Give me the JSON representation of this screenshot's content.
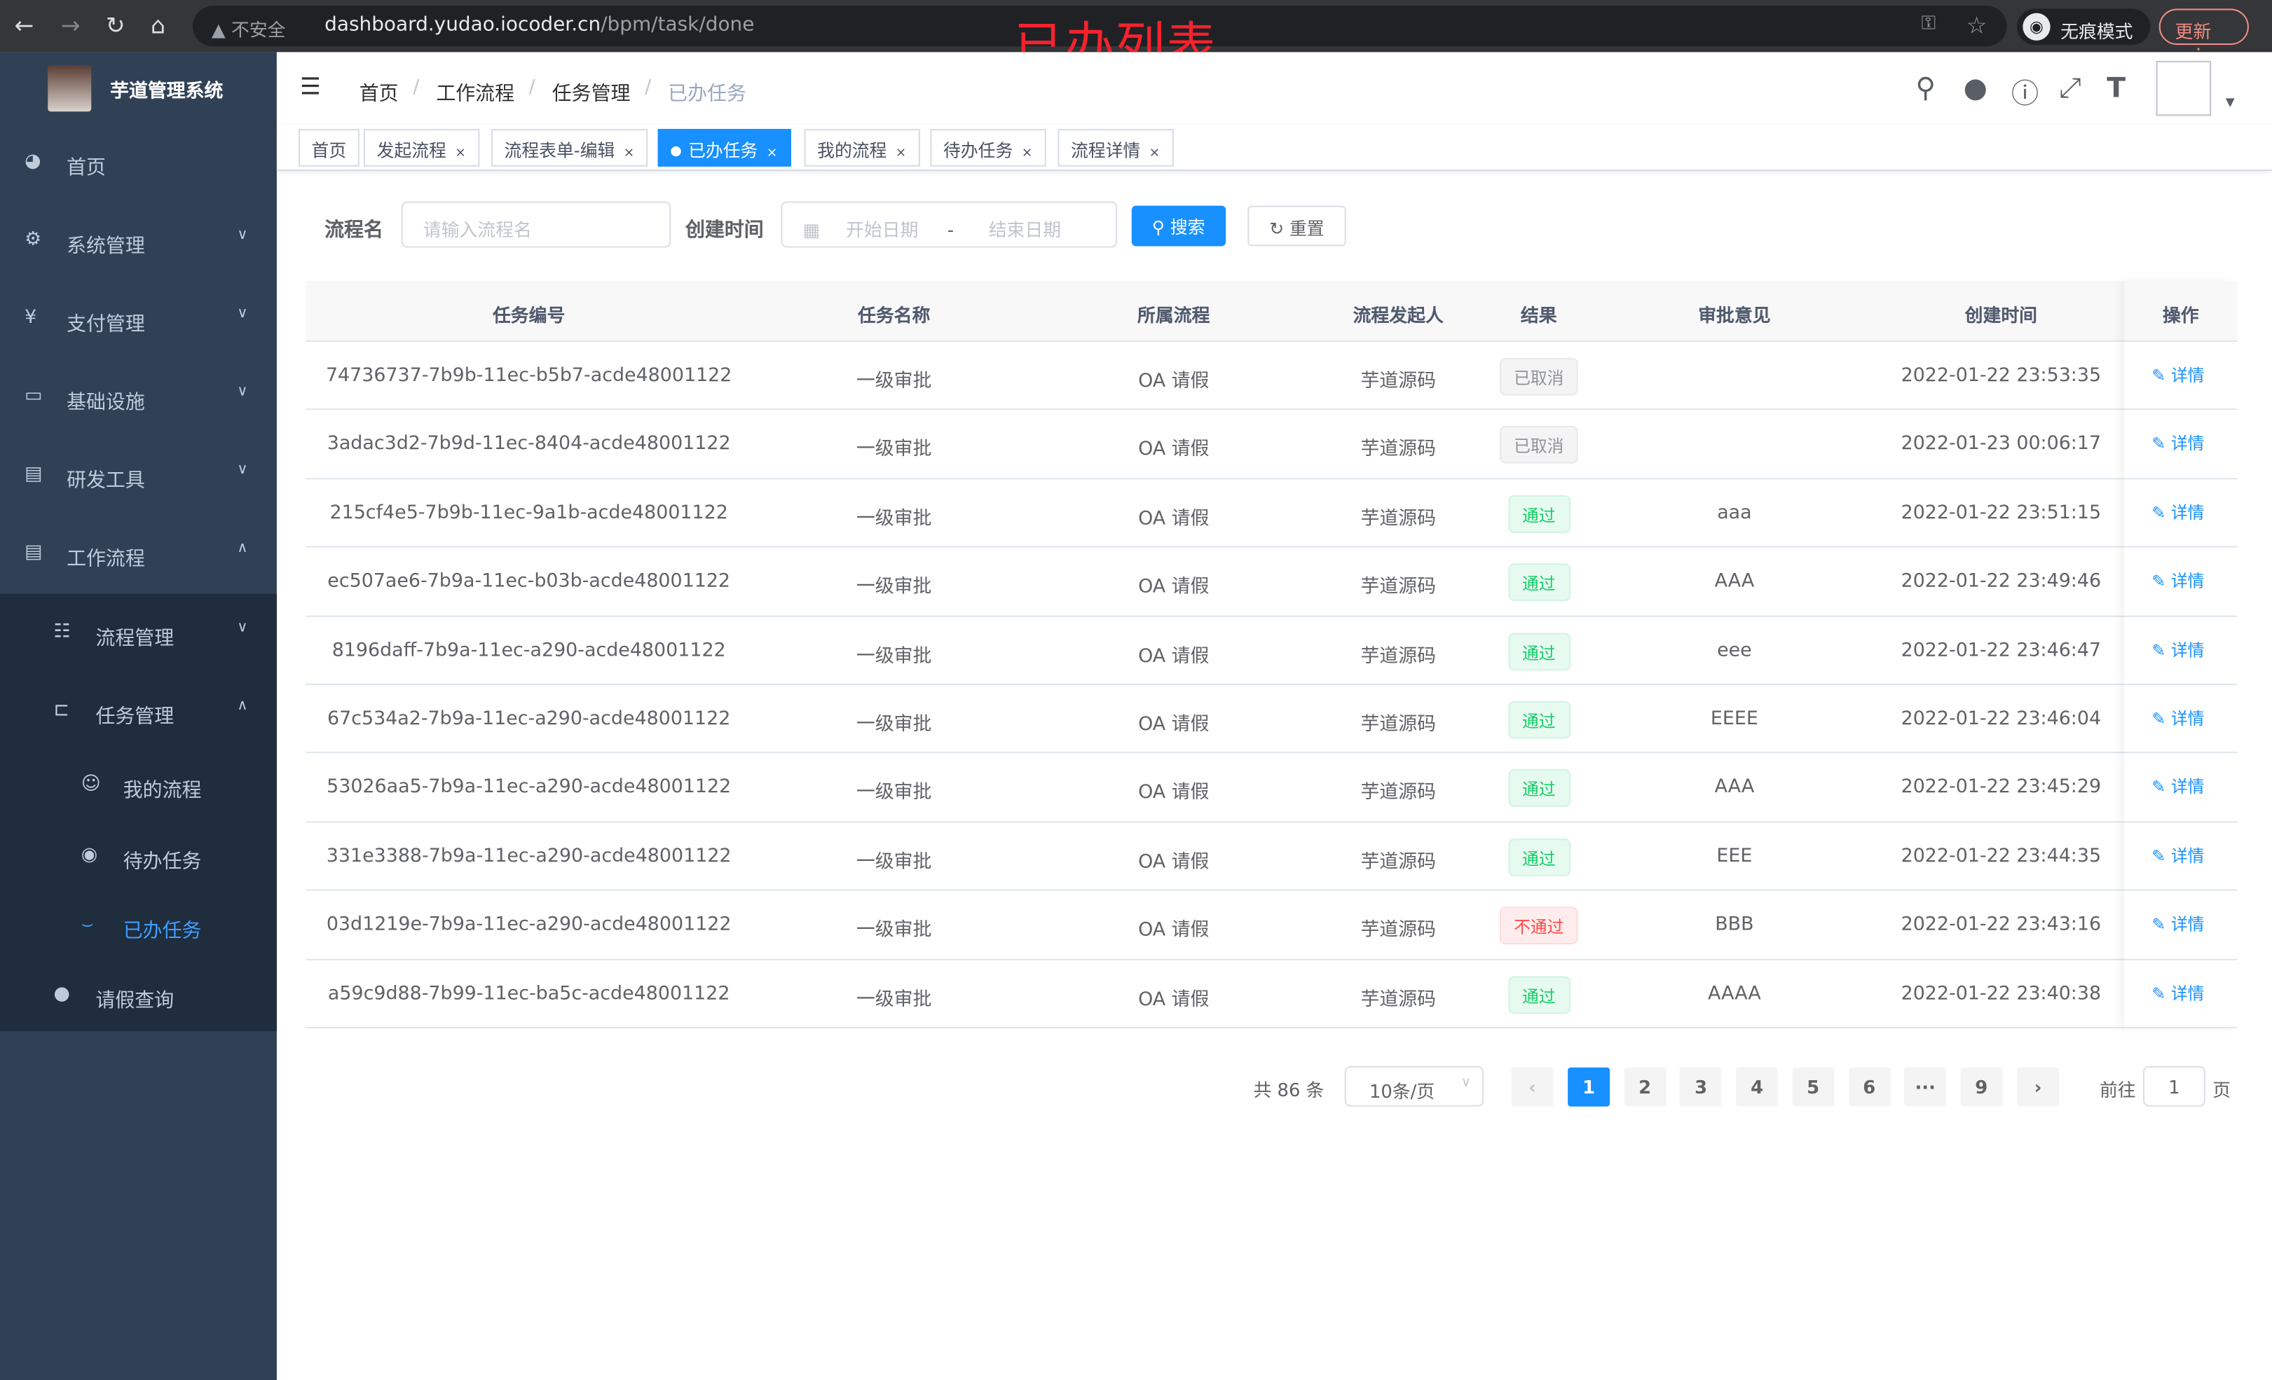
{
  "browser": {
    "insecure_label": "不安全",
    "url_host": "dashboard.yudao.iocoder.cn",
    "url_path": "/bpm/task/done",
    "incognito_label": "无痕模式",
    "update_label": "更新"
  },
  "annotation": "已办列表",
  "sidebar": {
    "title": "芋道管理系统",
    "items": [
      {
        "label": "首页",
        "icon": "dashboard-icon"
      },
      {
        "label": "系统管理",
        "icon": "gear-icon"
      },
      {
        "label": "支付管理",
        "icon": "yen-icon"
      },
      {
        "label": "基础设施",
        "icon": "monitor-icon"
      },
      {
        "label": "研发工具",
        "icon": "toolbox-icon"
      },
      {
        "label": "工作流程",
        "icon": "toolbox-icon"
      },
      {
        "label": "流程管理",
        "icon": "list-icon"
      },
      {
        "label": "任务管理",
        "icon": "tree-icon"
      },
      {
        "label": "我的流程",
        "icon": "user-circle-icon"
      },
      {
        "label": "待办任务",
        "icon": "eye-icon"
      },
      {
        "label": "已办任务",
        "icon": "eye-closed-icon"
      },
      {
        "label": "请假查询",
        "icon": "user-icon"
      }
    ]
  },
  "breadcrumb": [
    "首页",
    "工作流程",
    "任务管理",
    "已办任务"
  ],
  "tags": [
    {
      "label": "首页"
    },
    {
      "label": "发起流程"
    },
    {
      "label": "流程表单-编辑"
    },
    {
      "label": "已办任务",
      "active": true
    },
    {
      "label": "我的流程"
    },
    {
      "label": "待办任务"
    },
    {
      "label": "流程详情"
    }
  ],
  "filter": {
    "name_label": "流程名",
    "name_placeholder": "请输入流程名",
    "time_label": "创建时间",
    "start_placeholder": "开始日期",
    "range_sep": "-",
    "end_placeholder": "结束日期",
    "search_label": "搜索",
    "reset_label": "重置"
  },
  "table": {
    "columns": [
      "任务编号",
      "任务名称",
      "所属流程",
      "流程发起人",
      "结果",
      "审批意见",
      "创建时间",
      "操作"
    ],
    "action_label": "详情",
    "rows": [
      {
        "id": "74736737-7b9b-11ec-b5b7-acde48001122",
        "name": "一级审批",
        "process": "OA 请假",
        "starter": "芋道源码",
        "result": "已取消",
        "status": "cancel",
        "comment": "",
        "time": "2022-01-22 23:53:35"
      },
      {
        "id": "3adac3d2-7b9d-11ec-8404-acde48001122",
        "name": "一级审批",
        "process": "OA 请假",
        "starter": "芋道源码",
        "result": "已取消",
        "status": "cancel",
        "comment": "",
        "time": "2022-01-23 00:06:17"
      },
      {
        "id": "215cf4e5-7b9b-11ec-9a1b-acde48001122",
        "name": "一级审批",
        "process": "OA 请假",
        "starter": "芋道源码",
        "result": "通过",
        "status": "pass",
        "comment": "aaa",
        "time": "2022-01-22 23:51:15"
      },
      {
        "id": "ec507ae6-7b9a-11ec-b03b-acde48001122",
        "name": "一级审批",
        "process": "OA 请假",
        "starter": "芋道源码",
        "result": "通过",
        "status": "pass",
        "comment": "AAA",
        "time": "2022-01-22 23:49:46"
      },
      {
        "id": "8196daff-7b9a-11ec-a290-acde48001122",
        "name": "一级审批",
        "process": "OA 请假",
        "starter": "芋道源码",
        "result": "通过",
        "status": "pass",
        "comment": "eee",
        "time": "2022-01-22 23:46:47"
      },
      {
        "id": "67c534a2-7b9a-11ec-a290-acde48001122",
        "name": "一级审批",
        "process": "OA 请假",
        "starter": "芋道源码",
        "result": "通过",
        "status": "pass",
        "comment": "EEEE",
        "time": "2022-01-22 23:46:04"
      },
      {
        "id": "53026aa5-7b9a-11ec-a290-acde48001122",
        "name": "一级审批",
        "process": "OA 请假",
        "starter": "芋道源码",
        "result": "通过",
        "status": "pass",
        "comment": "AAA",
        "time": "2022-01-22 23:45:29"
      },
      {
        "id": "331e3388-7b9a-11ec-a290-acde48001122",
        "name": "一级审批",
        "process": "OA 请假",
        "starter": "芋道源码",
        "result": "通过",
        "status": "pass",
        "comment": "EEE",
        "time": "2022-01-22 23:44:35"
      },
      {
        "id": "03d1219e-7b9a-11ec-a290-acde48001122",
        "name": "一级审批",
        "process": "OA 请假",
        "starter": "芋道源码",
        "result": "不通过",
        "status": "reject",
        "comment": "BBB",
        "time": "2022-01-22 23:43:16"
      },
      {
        "id": "a59c9d88-7b99-11ec-ba5c-acde48001122",
        "name": "一级审批",
        "process": "OA 请假",
        "starter": "芋道源码",
        "result": "通过",
        "status": "pass",
        "comment": "AAAA",
        "time": "2022-01-22 23:40:38"
      }
    ]
  },
  "pagination": {
    "total_label": "共 86 条",
    "page_size": "10条/页",
    "pages": [
      "1",
      "2",
      "3",
      "4",
      "5",
      "6",
      "···",
      "9"
    ],
    "current": "1",
    "goto_label": "前往",
    "goto_value": "1",
    "page_suffix": "页"
  },
  "colors": {
    "sidebar": "#304156",
    "submenu": "#1f2d3d",
    "primary": "#1890ff",
    "active_menu": "#409eff",
    "pass": "#13ce66",
    "reject": "#ff4949",
    "cancel": "#909399"
  }
}
